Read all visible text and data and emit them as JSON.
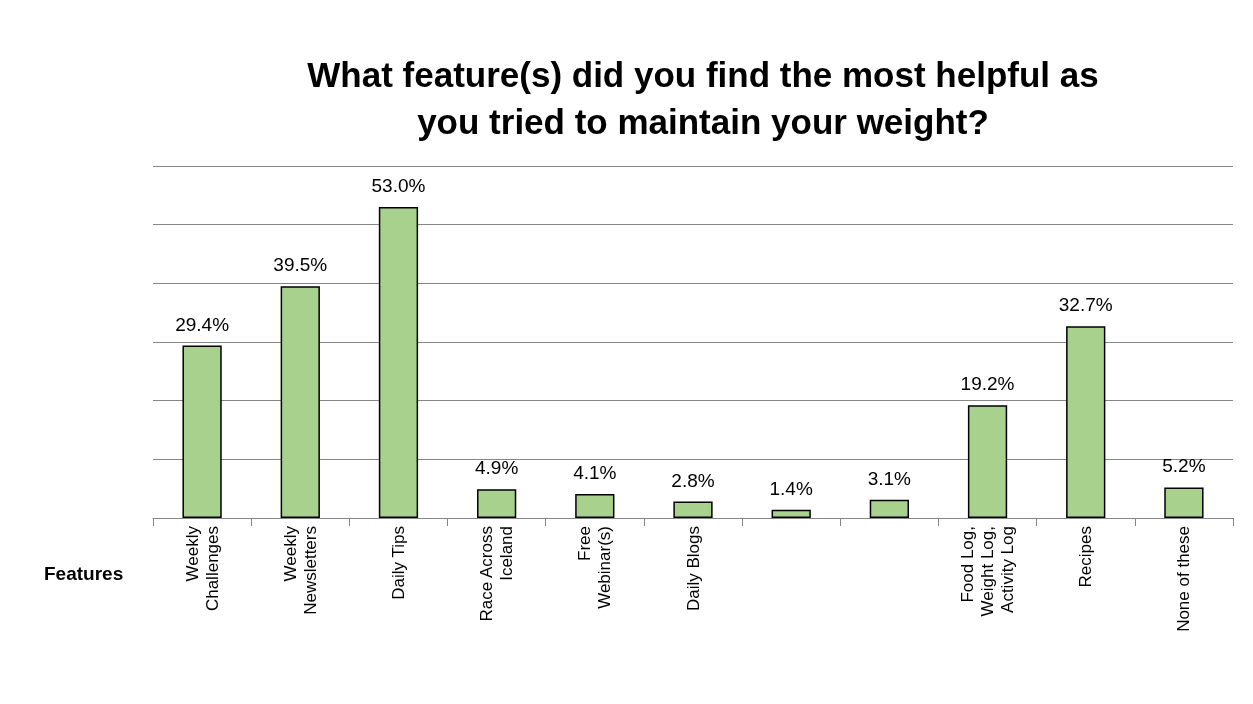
{
  "chart_data": {
    "type": "bar",
    "title": "What feature(s) did you find the most helpful as you tried to maintain your weight?",
    "xlabel": "Features",
    "categories": [
      "Weekly Challenges",
      "Weekly Newsletters",
      "Daily Tips",
      "Race Across Iceland",
      "Free Webinar(s)",
      "Daily Blogs",
      null,
      null,
      "Food Log, Weight Log, Activity Log",
      "Recipes",
      "None of these"
    ],
    "values": [
      29.4,
      39.5,
      53.0,
      4.9,
      4.1,
      2.8,
      1.4,
      3.1,
      19.2,
      32.7,
      5.2
    ],
    "value_labels": [
      "29.4%",
      "39.5%",
      "53.0%",
      "4.9%",
      "4.1%",
      "2.8%",
      "1.4%",
      "3.1%",
      "19.2%",
      "32.7%",
      "5.2%"
    ],
    "color": "#a9d18e",
    "ylim": [
      0,
      60
    ],
    "tick_labels": "x",
    "grid": "y"
  }
}
